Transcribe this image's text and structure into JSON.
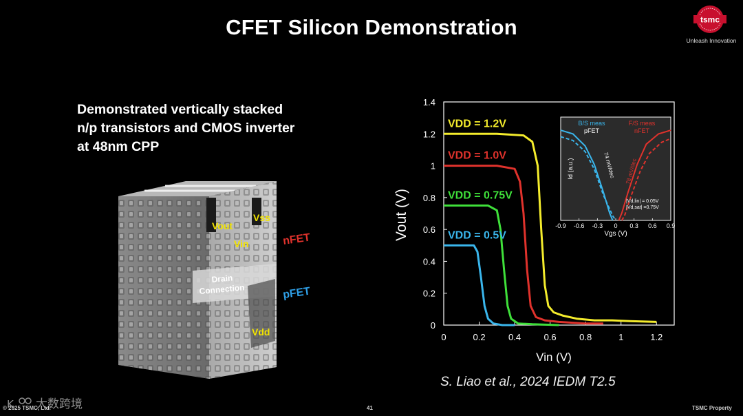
{
  "slide": {
    "title": "CFET Silicon Demonstration",
    "tagline": "Unleash Innovation",
    "logo_text": "tsmc",
    "description": [
      "Demonstrated vertically stacked",
      "n/p transistors and CMOS inverter",
      "at 48nm CPP"
    ],
    "citation": "S. Liao et al., 2024 IEDM T2.5",
    "footer_left": "© 2025 TSMC, Ltd.",
    "page_number": "41",
    "footer_right": "TSMC Property",
    "watermark_text": "大数跨境"
  },
  "cross_section": {
    "labels": {
      "vout": "Vout",
      "vss": "Vss",
      "vin": "Vin",
      "vdd": "Vdd",
      "drain_connection_1": "Drain",
      "drain_connection_2": "Connection",
      "nfet": "nFET",
      "pfet": "pFET"
    },
    "colors": {
      "nfet": "#e0322c",
      "pfet": "#2fa0e8",
      "terminal": "#f2e400"
    }
  },
  "chart_data": [
    {
      "type": "line",
      "xlabel": "Vin (V)",
      "ylabel": "Vout (V)",
      "xlim": [
        0,
        1.3
      ],
      "ylim": [
        0,
        1.4
      ],
      "xticks": [
        "0",
        "0.2",
        "0.4",
        "0.6",
        "0.8",
        "1",
        "1.2"
      ],
      "yticks": [
        "0",
        "0.2",
        "0.4",
        "0.6",
        "0.8",
        "1",
        "1.2",
        "1.4"
      ],
      "grid": false,
      "series": [
        {
          "name": "VDD = 1.2V",
          "vdd": 1.2,
          "color": "#f4ec2c",
          "x": [
            0,
            0.3,
            0.45,
            0.5,
            0.53,
            0.55,
            0.57,
            0.59,
            0.62,
            0.67,
            0.75,
            0.85,
            0.95,
            1.05,
            1.2
          ],
          "y": [
            1.2,
            1.2,
            1.19,
            1.15,
            1.0,
            0.6,
            0.25,
            0.12,
            0.08,
            0.06,
            0.04,
            0.03,
            0.03,
            0.025,
            0.02
          ]
        },
        {
          "name": "VDD = 1.0V",
          "vdd": 1.0,
          "color": "#e0322c",
          "x": [
            0,
            0.3,
            0.4,
            0.43,
            0.45,
            0.47,
            0.49,
            0.52,
            0.57,
            0.65,
            0.8,
            0.9
          ],
          "y": [
            1.0,
            1.0,
            0.98,
            0.9,
            0.7,
            0.35,
            0.12,
            0.05,
            0.03,
            0.02,
            0.01,
            0.01
          ]
        },
        {
          "name": "VDD = 0.75V",
          "vdd": 0.75,
          "color": "#3fe03a",
          "x": [
            0,
            0.25,
            0.3,
            0.32,
            0.34,
            0.36,
            0.38,
            0.42,
            0.5,
            0.65
          ],
          "y": [
            0.75,
            0.75,
            0.72,
            0.6,
            0.35,
            0.12,
            0.04,
            0.01,
            0.005,
            0.0
          ]
        },
        {
          "name": "VDD = 0.5V",
          "vdd": 0.5,
          "color": "#3ab6ec",
          "x": [
            0,
            0.17,
            0.19,
            0.21,
            0.23,
            0.25,
            0.28,
            0.33,
            0.4
          ],
          "y": [
            0.5,
            0.5,
            0.46,
            0.3,
            0.12,
            0.04,
            0.01,
            0.0,
            0.0
          ]
        }
      ]
    },
    {
      "type": "line",
      "xlabel": "Vgs (V)",
      "ylabel": "Id (a.u.)",
      "xlim": [
        -0.9,
        0.9
      ],
      "xticks": [
        "-0.9",
        "-0.6",
        "-0.3",
        "0",
        "0.3",
        "0.6",
        "0.9"
      ],
      "annotations": {
        "left_title_1": "B/S meas",
        "left_title_2": "pFET",
        "right_title_1": "F/S meas",
        "right_title_2": "nFET",
        "left_slope": "74 mV/dec",
        "right_slope": "78 mV/dec",
        "cond_1": "|Vd,lin| = 0.05V",
        "cond_2": "|Vd,sat| =0.75V"
      },
      "series": [
        {
          "color": "#3ab6ec",
          "style": "solid",
          "x": [
            -0.9,
            -0.7,
            -0.5,
            -0.35,
            -0.2,
            -0.1,
            -0.05
          ],
          "y": [
            0.97,
            0.93,
            0.8,
            0.6,
            0.3,
            0.08,
            0.0
          ]
        },
        {
          "color": "#3ab6ec",
          "style": "dashed",
          "x": [
            -0.9,
            -0.7,
            -0.5,
            -0.35,
            -0.2,
            -0.05,
            0.0
          ],
          "y": [
            0.9,
            0.86,
            0.74,
            0.55,
            0.27,
            0.05,
            0.0
          ]
        },
        {
          "color": "#e0322c",
          "style": "solid",
          "x": [
            0.05,
            0.1,
            0.2,
            0.35,
            0.5,
            0.7,
            0.9
          ],
          "y": [
            0.0,
            0.08,
            0.3,
            0.6,
            0.82,
            0.93,
            0.97
          ]
        },
        {
          "color": "#e0322c",
          "style": "dashed",
          "x": [
            0.1,
            0.15,
            0.25,
            0.4,
            0.55,
            0.75,
            0.9
          ],
          "y": [
            0.0,
            0.06,
            0.26,
            0.53,
            0.72,
            0.84,
            0.88
          ]
        }
      ]
    }
  ]
}
